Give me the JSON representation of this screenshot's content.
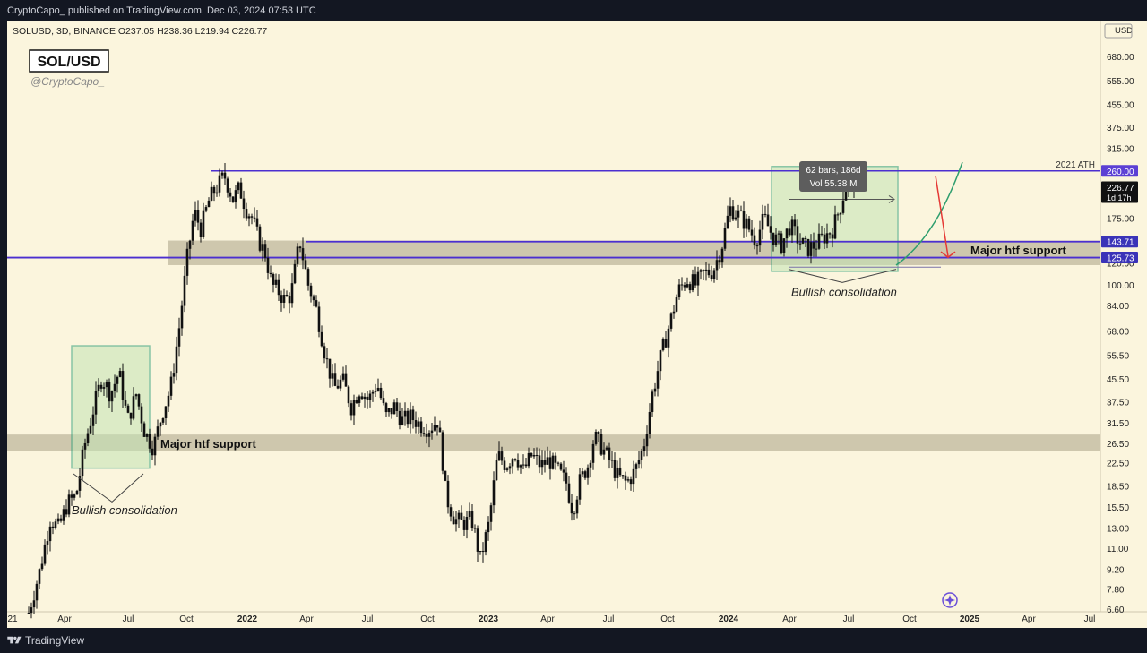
{
  "header": {
    "published_text": "CryptoCapo_ published on TradingView.com, Dec 03, 2024 07:53 UTC"
  },
  "footer": {
    "brand": "TradingView"
  },
  "chart_info": {
    "symbol_line": "SOLUSD, 3D, BINANCE",
    "open": "O237.05",
    "high": "H238.36",
    "low": "L219.94",
    "close": "C226.77",
    "ticker_box": "SOL/USD",
    "author": "@CryptoCapo_",
    "currency": "USD"
  },
  "colors": {
    "background": "#fbf5dd",
    "candle": "#111111",
    "zone": "#c6bea5",
    "resistance_line": "#4b2fd0",
    "consolidation_fill": "#c3e3b5",
    "consolidation_border": "#2a9d78",
    "arrow": "#e53935",
    "curve": "#2e9e6e",
    "price_tag_260": "#5b3fd4",
    "price_tag_143": "#3a33b8",
    "price_tag_current": "#111111"
  },
  "chart_data": {
    "type": "candlestick",
    "y_scale": "log",
    "ylim": [
      6.4,
      760
    ],
    "x_tick_labels": [
      "21",
      "Apr",
      "Jul",
      "Oct",
      "2022",
      "Apr",
      "Jul",
      "Oct",
      "2023",
      "Apr",
      "Jul",
      "Oct",
      "2024",
      "Apr",
      "Jul",
      "Oct",
      "2025",
      "Apr",
      "Jul"
    ],
    "y_tick_labels": [
      680,
      555,
      455,
      375,
      315,
      260,
      226.77,
      175,
      143.71,
      125.73,
      120,
      100,
      84,
      68,
      55.5,
      45.5,
      37.5,
      31.5,
      26.5,
      22.5,
      18.5,
      15.5,
      13,
      11,
      9.2,
      7.8,
      6.6
    ],
    "price_tags": [
      {
        "value": "260.00",
        "kind": "ath"
      },
      {
        "value": "226.77",
        "sub": "1d 17h",
        "kind": "current"
      },
      {
        "value": "143.71",
        "kind": "resistance"
      },
      {
        "value": "125.73",
        "kind": "support"
      }
    ],
    "path": [
      [
        0,
        6.4
      ],
      [
        0.5,
        9
      ],
      [
        1,
        14
      ],
      [
        1.4,
        13
      ],
      [
        1.8,
        16
      ],
      [
        2.2,
        17
      ],
      [
        2.6,
        26
      ],
      [
        3,
        35
      ],
      [
        3.4,
        46
      ],
      [
        3.8,
        40
      ],
      [
        4.2,
        48
      ],
      [
        4.6,
        32
      ],
      [
        5,
        40
      ],
      [
        5.4,
        29
      ],
      [
        5.8,
        25.5
      ],
      [
        6.2,
        34
      ],
      [
        6.6,
        42
      ],
      [
        7,
        70
      ],
      [
        7.4,
        130
      ],
      [
        7.7,
        185
      ],
      [
        8,
        160
      ],
      [
        8.4,
        205
      ],
      [
        8.8,
        230
      ],
      [
        9.1,
        250
      ],
      [
        9.5,
        205
      ],
      [
        9.8,
        225
      ],
      [
        10.1,
        190
      ],
      [
        10.4,
        175
      ],
      [
        10.7,
        145
      ],
      [
        11,
        130
      ],
      [
        11.3,
        100
      ],
      [
        11.6,
        95
      ],
      [
        11.9,
        88
      ],
      [
        12.2,
        92
      ],
      [
        12.6,
        145
      ],
      [
        13,
        100
      ],
      [
        13.4,
        80
      ],
      [
        13.8,
        55
      ],
      [
        14.2,
        42
      ],
      [
        14.6,
        45
      ],
      [
        15,
        36
      ],
      [
        15.4,
        42
      ],
      [
        15.8,
        38
      ],
      [
        16.2,
        44
      ],
      [
        16.6,
        33
      ],
      [
        17,
        36
      ],
      [
        17.4,
        32
      ],
      [
        17.8,
        33
      ],
      [
        18.2,
        31
      ],
      [
        18.6,
        30
      ],
      [
        19,
        32
      ],
      [
        19.2,
        25
      ],
      [
        19.4,
        17
      ],
      [
        19.8,
        14
      ],
      [
        20.2,
        13.5
      ],
      [
        20.6,
        14
      ],
      [
        21,
        10
      ],
      [
        21.4,
        13.5
      ],
      [
        21.8,
        24
      ],
      [
        22.2,
        22
      ],
      [
        22.6,
        24.5
      ],
      [
        23,
        21
      ],
      [
        23.4,
        24
      ],
      [
        23.8,
        22
      ],
      [
        24.2,
        23
      ],
      [
        24.6,
        21
      ],
      [
        25,
        19
      ],
      [
        25.3,
        15
      ],
      [
        25.6,
        19
      ],
      [
        26,
        22
      ],
      [
        26.3,
        28
      ],
      [
        26.6,
        26
      ],
      [
        27,
        23
      ],
      [
        27.4,
        20
      ],
      [
        27.8,
        19
      ],
      [
        28.2,
        21
      ],
      [
        28.6,
        26
      ],
      [
        29,
        40
      ],
      [
        29.4,
        55
      ],
      [
        29.8,
        72
      ],
      [
        30.2,
        95
      ],
      [
        30.6,
        105
      ],
      [
        31,
        100
      ],
      [
        31.4,
        110
      ],
      [
        31.8,
        112
      ],
      [
        32.2,
        135
      ],
      [
        32.6,
        190
      ],
      [
        33,
        180
      ],
      [
        33.4,
        165
      ],
      [
        33.8,
        145
      ],
      [
        34.2,
        175
      ],
      [
        34.6,
        150
      ],
      [
        35,
        140
      ],
      [
        35.4,
        165
      ],
      [
        35.8,
        145
      ],
      [
        36.2,
        135
      ],
      [
        36.6,
        140
      ],
      [
        37,
        150
      ],
      [
        37.4,
        160
      ],
      [
        37.8,
        200
      ],
      [
        38.1,
        250
      ],
      [
        38.3,
        245
      ],
      [
        38.55,
        226.77
      ]
    ],
    "x_domain": [
      0,
      43.5
    ],
    "annotations": {
      "zone_top": {
        "label": "Major htf support"
      },
      "zone_bottom": {
        "label": "Major htf support"
      },
      "consolidation_left": {
        "label": "Bullish consolidation"
      },
      "consolidation_right": {
        "label": "Bullish consolidation"
      },
      "ath": {
        "label": "2021 ATH"
      },
      "measure": {
        "bars": "62 bars, 186d",
        "vol": "Vol 55.38 M"
      }
    }
  }
}
